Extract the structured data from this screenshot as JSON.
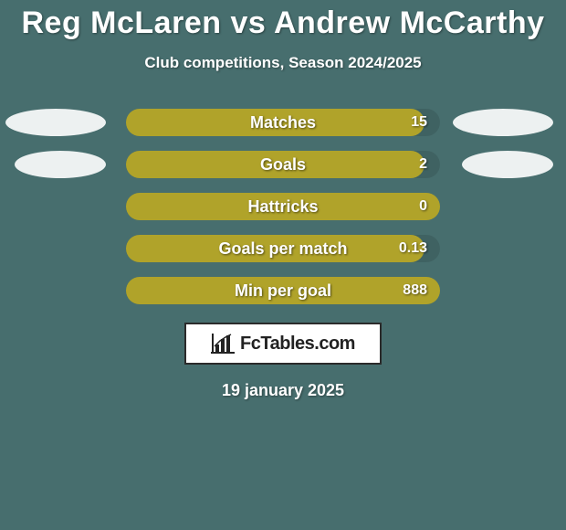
{
  "title": "Reg McLaren vs Andrew McCarthy",
  "subtitle": "Club competitions, Season 2024/2025",
  "background_color": "#476e6e",
  "text_color": "#ffffff",
  "bar_color": "#b0a32a",
  "bar_track_color": "rgba(0,0,0,0.10)",
  "ellipse_color": "#ffffff",
  "brand": {
    "text": "FcTables.com",
    "box_bg": "#ffffff",
    "box_border": "#2b2b2b",
    "text_color": "#222222"
  },
  "date": "19 january 2025",
  "stats": [
    {
      "label": "Matches",
      "value": "15",
      "fill_pct": 95,
      "show_left_ellipse": true,
      "show_right_ellipse": true
    },
    {
      "label": "Goals",
      "value": "2",
      "fill_pct": 95,
      "show_left_ellipse": true,
      "show_right_ellipse": true
    },
    {
      "label": "Hattricks",
      "value": "0",
      "fill_pct": 100,
      "show_left_ellipse": false,
      "show_right_ellipse": false
    },
    {
      "label": "Goals per match",
      "value": "0.13",
      "fill_pct": 95,
      "show_left_ellipse": false,
      "show_right_ellipse": false
    },
    {
      "label": "Min per goal",
      "value": "888",
      "fill_pct": 100,
      "show_left_ellipse": false,
      "show_right_ellipse": false
    }
  ]
}
